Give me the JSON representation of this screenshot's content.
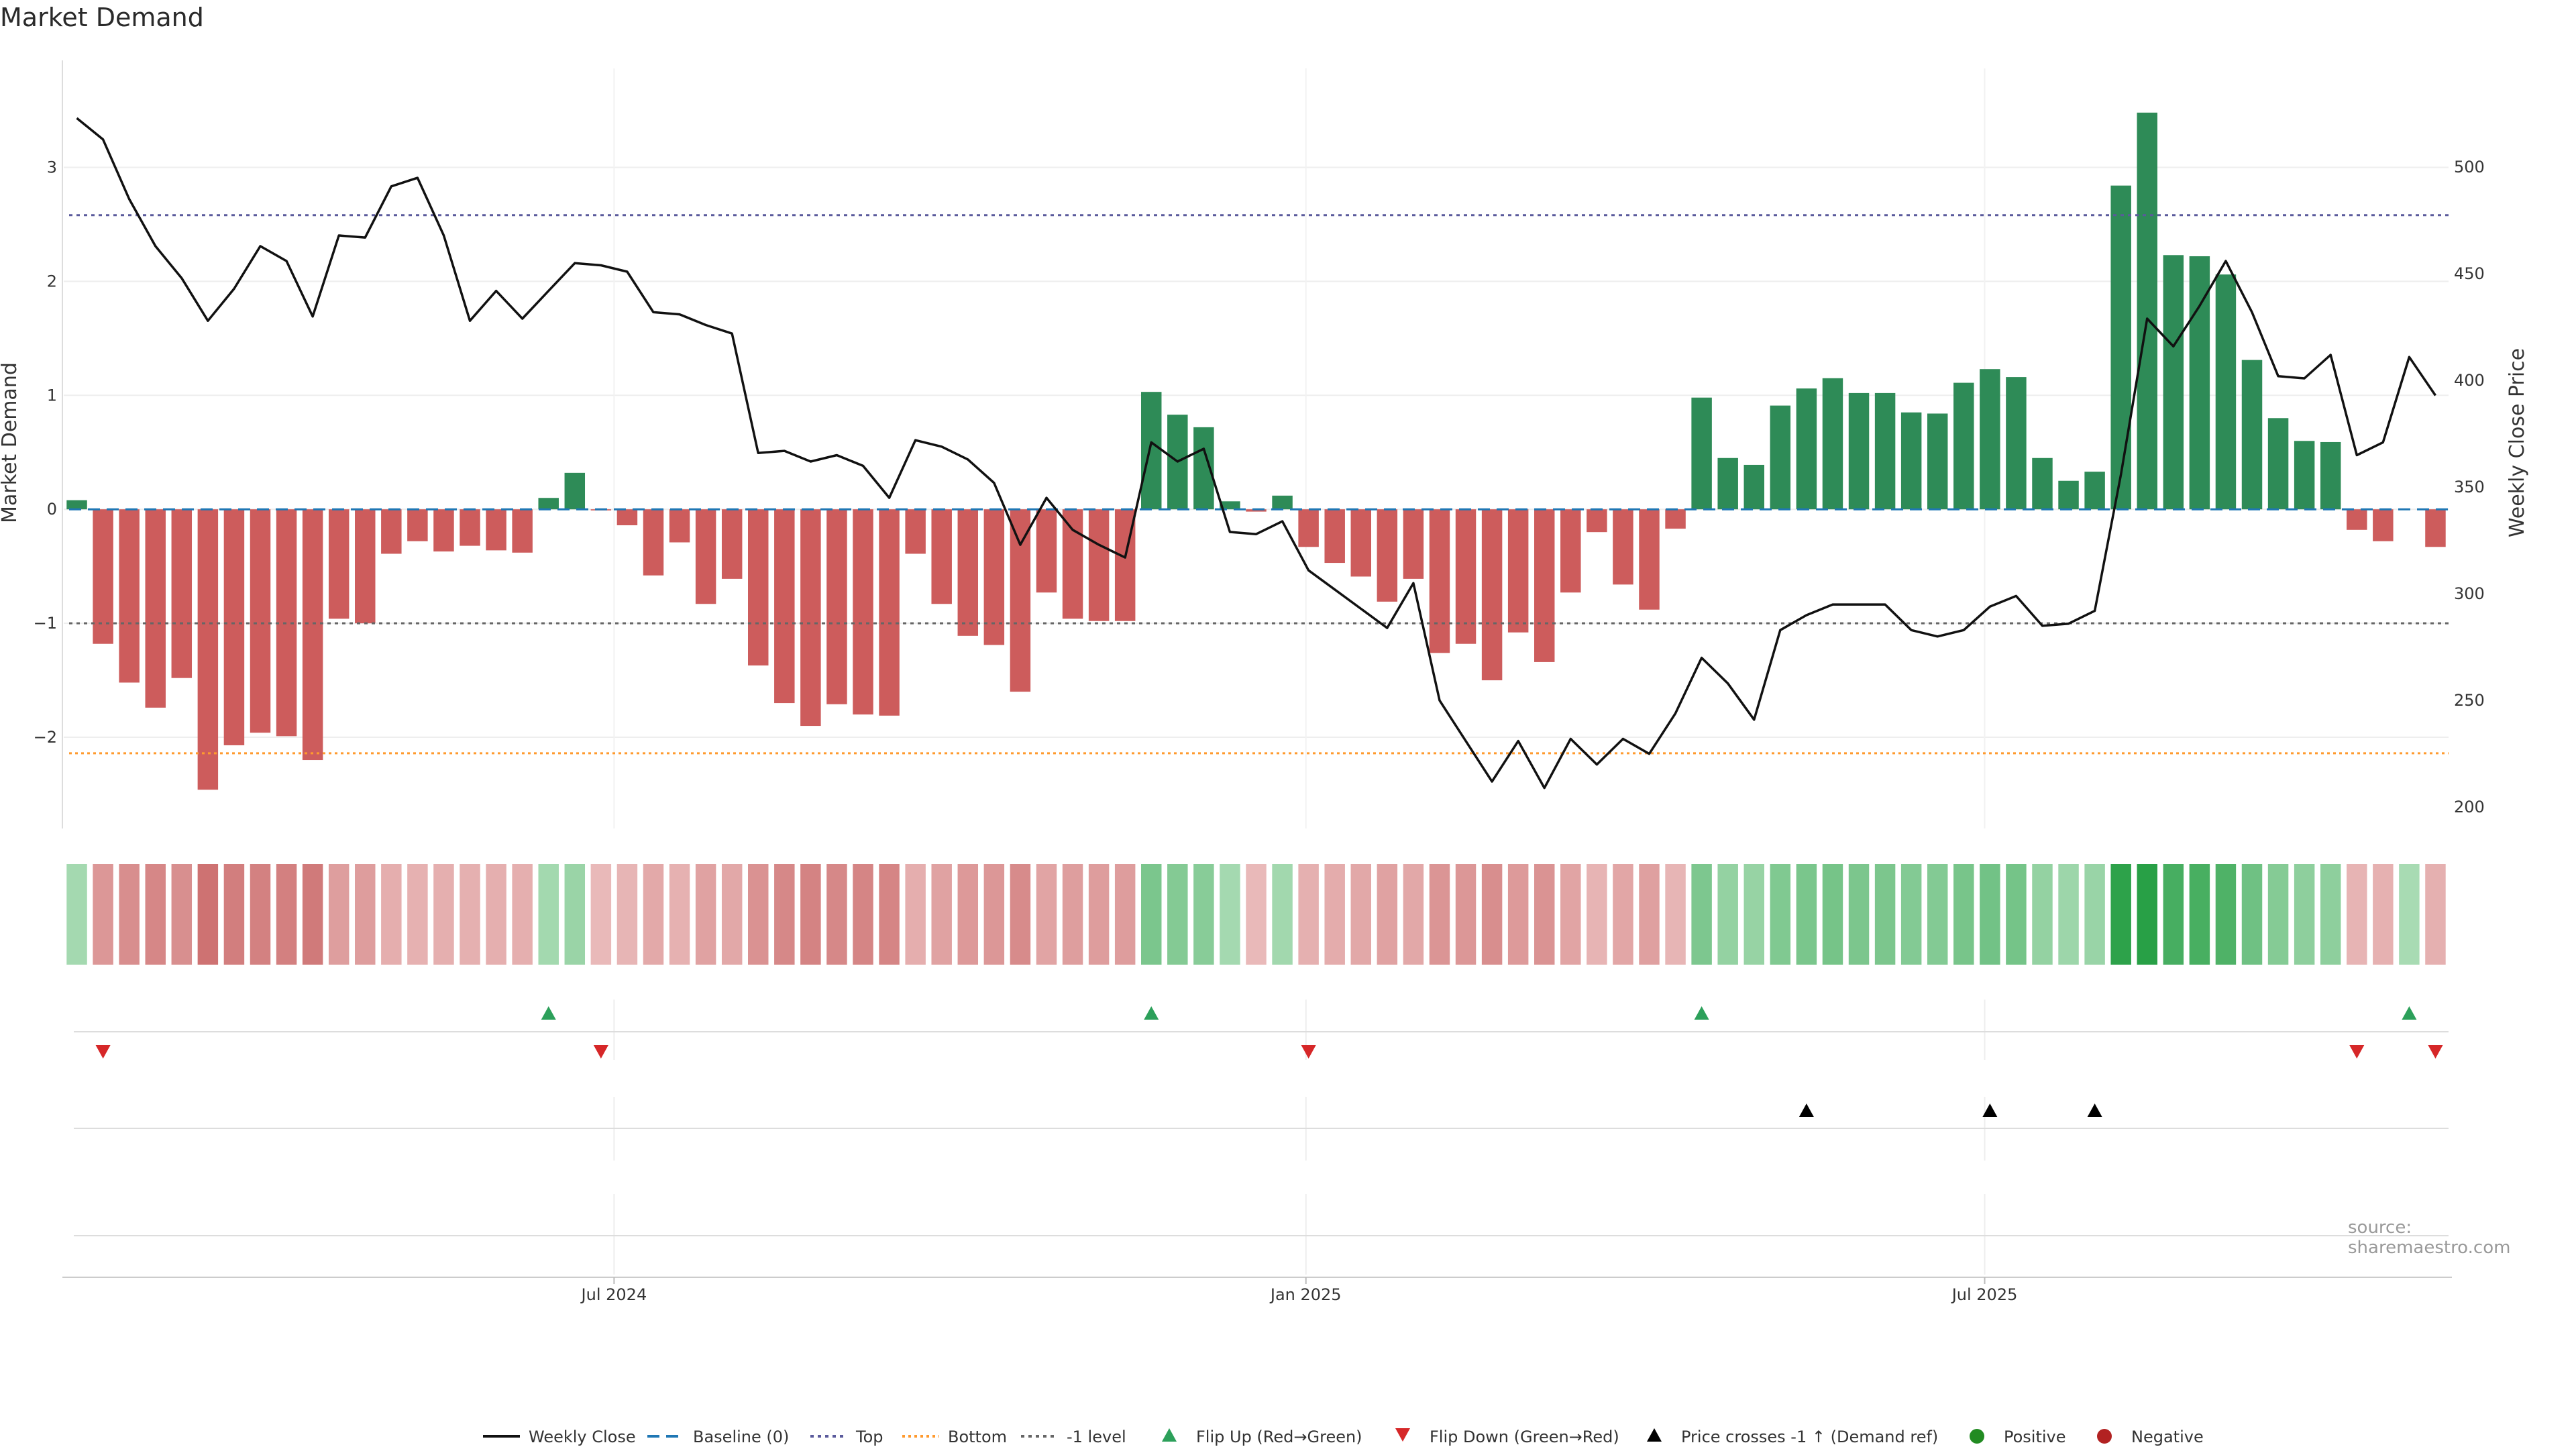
{
  "chart_data": {
    "type": "bar",
    "title": "Market Demand",
    "ylabel": "Market Demand",
    "y2label": "Weekly Close Price",
    "ylim": [
      -2.8,
      3.75
    ],
    "y2lim": [
      190,
      540
    ],
    "yticks": [
      3,
      2,
      1,
      0,
      -1,
      -2
    ],
    "ytick_labels": [
      "3",
      "2",
      "1",
      "0",
      "−1",
      "−2"
    ],
    "y2ticks": [
      500,
      450,
      400,
      350,
      300,
      250,
      200
    ],
    "xtick_labels": [
      "Jul 2024",
      "Jan 2025",
      "Jul 2025"
    ],
    "xtick_index": [
      20.5,
      46.9,
      72.8
    ],
    "reference_lines": {
      "top": 2.58,
      "bottom": -2.14,
      "minus_one_level": -1.0,
      "baseline": 0
    },
    "weeks": 91,
    "demand": [
      0.08,
      -1.18,
      -1.52,
      -1.74,
      -1.48,
      -2.46,
      -2.07,
      -1.96,
      -1.99,
      -2.2,
      -0.96,
      -1.0,
      -0.39,
      -0.28,
      -0.37,
      -0.32,
      -0.36,
      -0.38,
      0.1,
      0.32,
      -0.01,
      -0.14,
      -0.58,
      -0.29,
      -0.83,
      -0.61,
      -1.37,
      -1.7,
      -1.9,
      -1.71,
      -1.8,
      -1.81,
      -0.39,
      -0.83,
      -1.11,
      -1.19,
      -1.6,
      -0.73,
      -0.96,
      -0.98,
      -0.98,
      1.03,
      0.83,
      0.72,
      0.07,
      -0.02,
      0.12,
      -0.33,
      -0.47,
      -0.59,
      -0.81,
      -0.61,
      -1.26,
      -1.18,
      -1.5,
      -1.08,
      -1.34,
      -0.73,
      -0.2,
      -0.66,
      -0.88,
      -0.17,
      0.98,
      0.45,
      0.39,
      0.91,
      1.06,
      1.15,
      1.02,
      1.02,
      0.85,
      0.84,
      1.11,
      1.23,
      1.16,
      0.45,
      0.25,
      0.33,
      2.84,
      3.48,
      2.23,
      2.22,
      2.06,
      1.31,
      0.8,
      0.6,
      0.59,
      -0.18,
      -0.28,
      0.0,
      -0.33
    ],
    "weekly_close": [
      523,
      513,
      485,
      463,
      448,
      428,
      443,
      463,
      456,
      430,
      468,
      467,
      491,
      495,
      468,
      428,
      442,
      429,
      442,
      455,
      454,
      451,
      432,
      431,
      426,
      422,
      366,
      367,
      362,
      365,
      360,
      345,
      372,
      369,
      363,
      352,
      323,
      345,
      330,
      323,
      317,
      371,
      362,
      368,
      329,
      328,
      334,
      311,
      302,
      293,
      284,
      305,
      250,
      231,
      212,
      231,
      209,
      232,
      220,
      232,
      225,
      244,
      270,
      258,
      241,
      283,
      290,
      295,
      295,
      295,
      283,
      280,
      283,
      294,
      299,
      285,
      286,
      292,
      356,
      429,
      416,
      435,
      456,
      432,
      402,
      401,
      412,
      365,
      371,
      411,
      393
    ],
    "flip_up_index": [
      18,
      41,
      62,
      89
    ],
    "flip_down_index": [
      1,
      20,
      47,
      87,
      90
    ],
    "price_cross_index": [
      66,
      73,
      77
    ],
    "series": [
      {
        "name": "Weekly Close"
      },
      {
        "name": "Baseline (0)"
      },
      {
        "name": "Top"
      },
      {
        "name": "Bottom"
      },
      {
        "name": "-1 level"
      },
      {
        "name": "Flip Up (Red→Green)"
      },
      {
        "name": "Flip Down (Green→Red)"
      },
      {
        "name": "Price crosses -1 ↑ (Demand ref)"
      },
      {
        "name": "Positive"
      },
      {
        "name": "Negative"
      }
    ],
    "legend_position": "bottom",
    "source": "source: sharemaestro.com"
  },
  "colors": {
    "positive": "#2e8b57",
    "negative": "#cd5c5c",
    "flip_up": "#2ca05a",
    "flip_down": "#d62728",
    "price_line": "#111111",
    "baseline": "#1f77b4",
    "top_line": "#5a5a9c",
    "bottom_line": "#ff9a2e",
    "minus_one": "#666666",
    "legend_positive": "#228b22",
    "legend_negative": "#b22222"
  }
}
